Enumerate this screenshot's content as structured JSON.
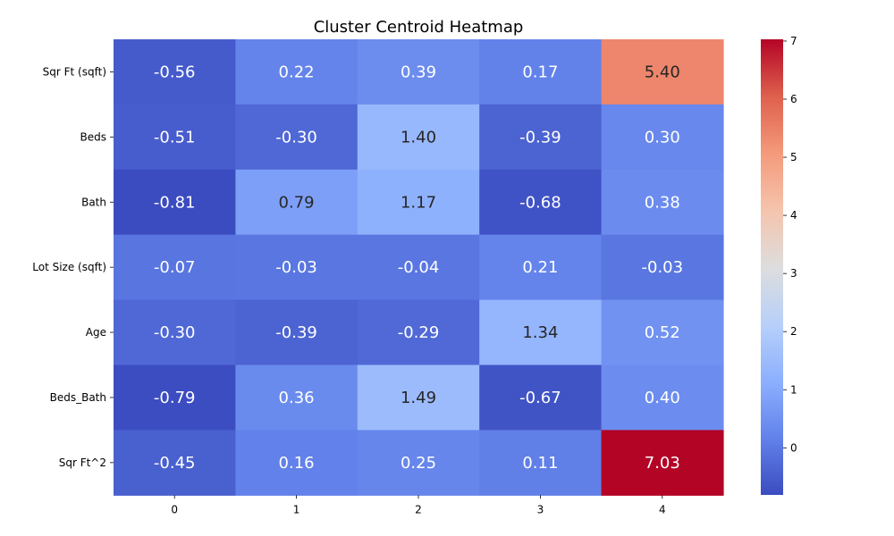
{
  "chart_data": {
    "type": "heatmap",
    "title": "Cluster Centroid Heatmap",
    "xlabel": "",
    "ylabel": "",
    "x_categories": [
      "0",
      "1",
      "2",
      "3",
      "4"
    ],
    "y_categories": [
      "Sqr Ft (sqft)",
      "Beds",
      "Bath",
      "Lot Size (sqft)",
      "Age",
      "Beds_Bath",
      "Sqr Ft^2"
    ],
    "values": [
      [
        -0.56,
        0.22,
        0.39,
        0.17,
        5.4
      ],
      [
        -0.51,
        -0.3,
        1.4,
        -0.39,
        0.3
      ],
      [
        -0.81,
        0.79,
        1.17,
        -0.68,
        0.38
      ],
      [
        -0.07,
        -0.03,
        -0.04,
        0.21,
        -0.03
      ],
      [
        -0.3,
        -0.39,
        -0.29,
        1.34,
        0.52
      ],
      [
        -0.79,
        0.36,
        1.49,
        -0.67,
        0.4
      ],
      [
        -0.45,
        0.16,
        0.25,
        0.11,
        7.03
      ]
    ],
    "annotations": true,
    "value_format": "0.00",
    "colormap": "coolwarm",
    "colorbar": {
      "vmin": -0.81,
      "vmax": 7.03,
      "ticks": [
        0,
        1,
        2,
        3,
        4,
        5,
        6,
        7
      ]
    },
    "grid": false,
    "legend": "none"
  }
}
